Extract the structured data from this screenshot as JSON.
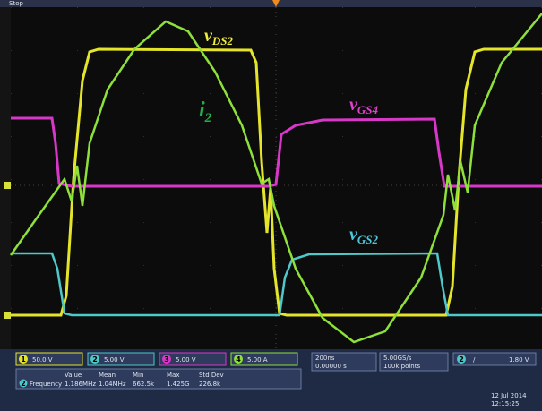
{
  "status": "Stop",
  "waveform_labels": [
    {
      "symbol": "v",
      "subscript": "DS2"
    },
    {
      "symbol": "i",
      "subscript": "2"
    },
    {
      "symbol": "v",
      "subscript": "GS4"
    },
    {
      "symbol": "v",
      "subscript": "GS2"
    }
  ],
  "channels": [
    {
      "number": "1",
      "scale": "50.0 V",
      "color": "#e4e42a"
    },
    {
      "number": "2",
      "scale": "5.00 V",
      "color": "#4ec8c8"
    },
    {
      "number": "3",
      "scale": "5.00 V",
      "color": "#d838c8"
    },
    {
      "number": "4",
      "scale": "5.00 A",
      "color": "#8ee03a"
    }
  ],
  "timebase": {
    "scale": "200ns",
    "delay": "0.00000 s"
  },
  "acquisition": {
    "rate": "5.00GS/s",
    "points": "100k points"
  },
  "trigger": {
    "channel": "2",
    "slope": "/",
    "level": "1.80 V"
  },
  "measurement": {
    "channel": "2",
    "headers": [
      "Value",
      "Mean",
      "Min",
      "Max",
      "Std Dev"
    ],
    "name": "Frequency",
    "values": [
      "1.186MHz",
      "1.04MHz",
      "662.5k",
      "1.425G",
      "226.8k"
    ]
  },
  "clock": {
    "date": "12 Jul 2014",
    "time": "12:15:25"
  }
}
